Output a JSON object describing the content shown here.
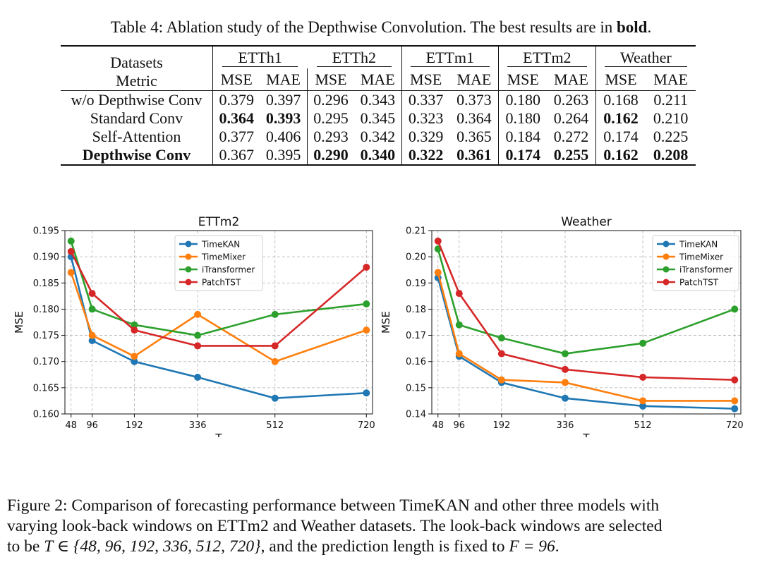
{
  "table_caption": {
    "prefix": "Table 4: Ablation study of the Depthwise Convolution. The best results are in ",
    "bold_word": "bold",
    "suffix": "."
  },
  "table": {
    "corner_top": "Datasets",
    "corner_bottom": "Metric",
    "datasets": [
      "ETTh1",
      "ETTh2",
      "ETTm1",
      "ETTm2",
      "Weather"
    ],
    "metrics": [
      "MSE",
      "MAE"
    ],
    "rows": [
      {
        "name": "w/o Depthwise Conv",
        "name_bold": false,
        "values": [
          "0.379",
          "0.397",
          "0.296",
          "0.343",
          "0.337",
          "0.373",
          "0.180",
          "0.263",
          "0.168",
          "0.211"
        ],
        "bold": [
          false,
          false,
          false,
          false,
          false,
          false,
          false,
          false,
          false,
          false
        ]
      },
      {
        "name": "Standard Conv",
        "name_bold": false,
        "values": [
          "0.364",
          "0.393",
          "0.295",
          "0.345",
          "0.323",
          "0.364",
          "0.180",
          "0.264",
          "0.162",
          "0.210"
        ],
        "bold": [
          true,
          true,
          false,
          false,
          false,
          false,
          false,
          false,
          true,
          false
        ]
      },
      {
        "name": "Self-Attention",
        "name_bold": false,
        "values": [
          "0.377",
          "0.406",
          "0.293",
          "0.342",
          "0.329",
          "0.365",
          "0.184",
          "0.272",
          "0.174",
          "0.225"
        ],
        "bold": [
          false,
          false,
          false,
          false,
          false,
          false,
          false,
          false,
          false,
          false
        ]
      },
      {
        "name": "Depthwise Conv",
        "name_bold": true,
        "values": [
          "0.367",
          "0.395",
          "0.290",
          "0.340",
          "0.322",
          "0.361",
          "0.174",
          "0.255",
          "0.162",
          "0.208"
        ],
        "bold": [
          false,
          false,
          true,
          true,
          true,
          true,
          true,
          true,
          true,
          true
        ]
      }
    ]
  },
  "chart_data": [
    {
      "type": "line",
      "title": "ETTm2",
      "xlabel": "T",
      "ylabel": "MSE",
      "x": [
        48,
        96,
        192,
        336,
        512,
        720
      ],
      "xlim": [
        34,
        734
      ],
      "ylim": [
        0.16,
        0.195
      ],
      "yticks": [
        0.16,
        0.165,
        0.17,
        0.175,
        0.18,
        0.185,
        0.19,
        0.195
      ],
      "ytick_labels": [
        "0.160",
        "0.165",
        "0.170",
        "0.175",
        "0.180",
        "0.185",
        "0.190",
        "0.195"
      ],
      "xtick_labels": [
        "48",
        "96",
        "192",
        "336",
        "512",
        "720"
      ],
      "grid": true,
      "legend_position": "top-center",
      "series": [
        {
          "name": "TimeKAN",
          "color": "#1f77b4",
          "values": [
            0.19,
            0.174,
            0.17,
            0.167,
            0.163,
            0.164
          ]
        },
        {
          "name": "TimeMixer",
          "color": "#ff7f0e",
          "values": [
            0.187,
            0.175,
            0.171,
            0.179,
            0.17,
            0.176
          ]
        },
        {
          "name": "iTransformer",
          "color": "#2ca02c",
          "values": [
            0.193,
            0.18,
            0.177,
            0.175,
            0.179,
            0.181
          ]
        },
        {
          "name": "PatchTST",
          "color": "#d62728",
          "values": [
            0.191,
            0.183,
            0.176,
            0.173,
            0.173,
            0.188
          ]
        }
      ]
    },
    {
      "type": "line",
      "title": "Weather",
      "xlabel": "T",
      "ylabel": "MSE",
      "x": [
        48,
        96,
        192,
        336,
        512,
        720
      ],
      "xlim": [
        34,
        734
      ],
      "ylim": [
        0.14,
        0.21
      ],
      "yticks": [
        0.14,
        0.15,
        0.16,
        0.17,
        0.18,
        0.19,
        0.2,
        0.21
      ],
      "ytick_labels": [
        "0.14",
        "0.15",
        "0.16",
        "0.17",
        "0.18",
        "0.19",
        "0.20",
        "0.21"
      ],
      "xtick_labels": [
        "48",
        "96",
        "192",
        "336",
        "512",
        "720"
      ],
      "grid": true,
      "legend_position": "top-right",
      "series": [
        {
          "name": "TimeKAN",
          "color": "#1f77b4",
          "values": [
            0.192,
            0.162,
            0.152,
            0.146,
            0.143,
            0.142
          ]
        },
        {
          "name": "TimeMixer",
          "color": "#ff7f0e",
          "values": [
            0.194,
            0.163,
            0.153,
            0.152,
            0.145,
            0.145
          ]
        },
        {
          "name": "iTransformer",
          "color": "#2ca02c",
          "values": [
            0.203,
            0.174,
            0.169,
            0.163,
            0.167,
            0.18
          ]
        },
        {
          "name": "PatchTST",
          "color": "#d62728",
          "values": [
            0.206,
            0.186,
            0.163,
            0.157,
            0.154,
            0.153
          ]
        }
      ]
    }
  ],
  "figure_caption": {
    "line1": "Figure 2: Comparison of forecasting performance between TimeKAN and other three models with",
    "line2": "varying look-back windows on ETTm2 and Weather datasets. The look-back windows are selected",
    "line3_prefix": "to be ",
    "line3_math1": "T ∈ {48, 96, 192, 336, 512, 720}",
    "line3_mid": ", and the prediction length is fixed to ",
    "line3_math2": "F = 96",
    "line3_suffix": "."
  }
}
